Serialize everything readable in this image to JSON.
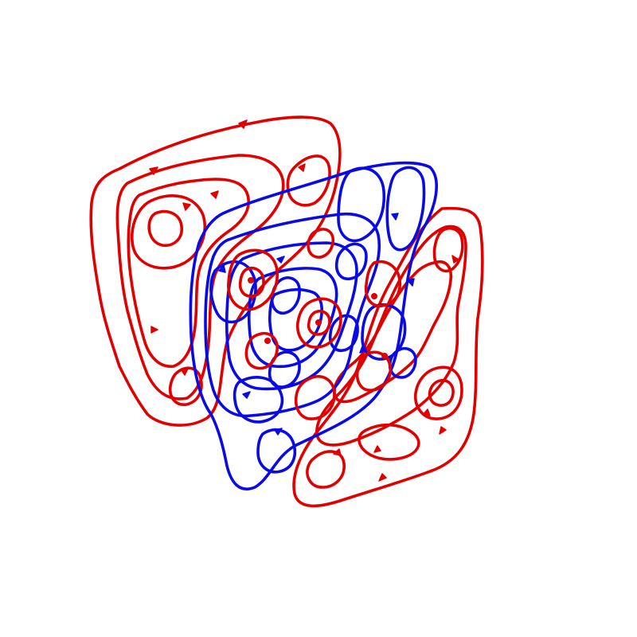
{
  "scene": {
    "description_hidden": "",
    "colors": {
      "back_plane": "#e00000",
      "middle_plane": "#0a0ae6",
      "front_plane": "#e00000",
      "background": "#ffffff"
    },
    "planes": [
      {
        "id": "back",
        "color_key": "back_plane",
        "icon": "field-lines"
      },
      {
        "id": "middle",
        "color_key": "middle_plane",
        "icon": "field-lines"
      },
      {
        "id": "front",
        "color_key": "front_plane",
        "icon": "field-lines"
      }
    ]
  }
}
